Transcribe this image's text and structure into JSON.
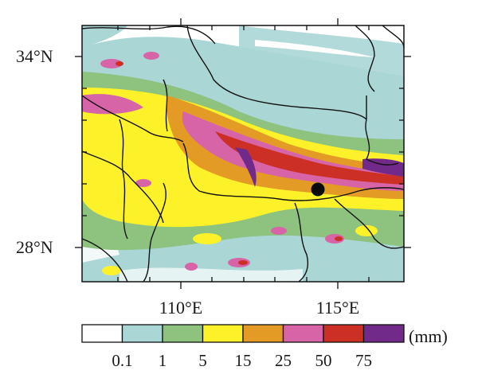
{
  "map": {
    "lat_labels": [
      "34°N",
      "28°N"
    ],
    "lon_labels": [
      "110°E",
      "115°E"
    ],
    "marker": "black-dot"
  },
  "colorbar": {
    "unit": "(mm)",
    "tick_labels": [
      "0.1",
      "1",
      "5",
      "15",
      "25",
      "50",
      "75"
    ],
    "colors": [
      "#ffffff",
      "#abd6d6",
      "#8dc27f",
      "#fdf22a",
      "#e39b26",
      "#d764a6",
      "#cc2f23",
      "#71298a"
    ]
  }
}
